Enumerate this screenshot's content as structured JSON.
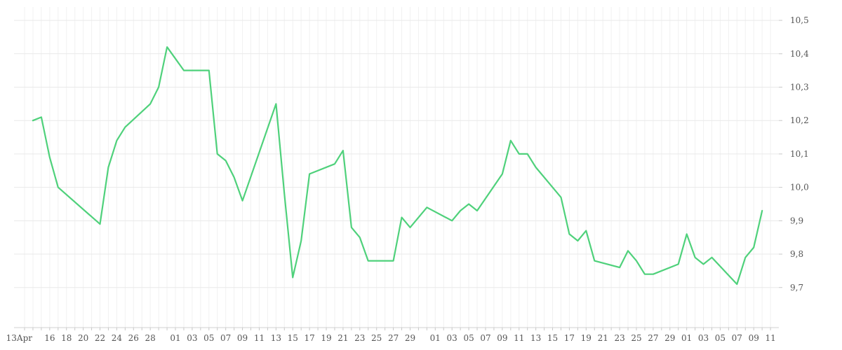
{
  "chart_data": {
    "type": "line",
    "title": "",
    "xlabel": "",
    "ylabel": "",
    "x_tick_labels": [
      "13Apr",
      "16",
      "18",
      "20",
      "22",
      "24",
      "26",
      "28",
      "01",
      "03",
      "05",
      "07",
      "09",
      "11",
      "13",
      "15",
      "17",
      "19",
      "21",
      "23",
      "25",
      "27",
      "29",
      "01",
      "03",
      "05",
      "07",
      "09",
      "11",
      "13",
      "15",
      "17",
      "19",
      "21",
      "23",
      "25",
      "27",
      "29",
      "01",
      "03",
      "05",
      "07",
      "09",
      "11"
    ],
    "y_tick_labels": [
      "9,7",
      "9,8",
      "9,9",
      "10,0",
      "10,1",
      "10,2",
      "10,3",
      "10,4",
      "10,5"
    ],
    "y_ticks": [
      9.7,
      9.8,
      9.9,
      10.0,
      10.1,
      10.2,
      10.3,
      10.4,
      10.5
    ],
    "ylim": [
      9.58,
      10.54
    ],
    "y_axis_position": "right",
    "grid": true,
    "legend": "none",
    "colors": {
      "line": "#4fd17b",
      "grid": "#eeeeee",
      "tick_text": "#555555"
    },
    "series": [
      {
        "x": [
          "2024-04-14",
          "2024-04-15",
          "2024-04-16",
          "2024-04-17",
          "2024-04-22",
          "2024-04-23",
          "2024-04-24",
          "2024-04-25",
          "2024-04-28",
          "2024-04-29",
          "2024-04-30",
          "2024-05-02",
          "2024-05-05",
          "2024-05-06",
          "2024-05-07",
          "2024-05-08",
          "2024-05-09",
          "2024-05-13",
          "2024-05-14",
          "2024-05-15",
          "2024-05-16",
          "2024-05-17",
          "2024-05-20",
          "2024-05-21",
          "2024-05-22",
          "2024-05-23",
          "2024-05-24",
          "2024-05-27",
          "2024-05-28",
          "2024-05-29",
          "2024-05-31",
          "2024-06-03",
          "2024-06-04",
          "2024-06-05",
          "2024-06-06",
          "2024-06-09",
          "2024-06-10",
          "2024-06-11",
          "2024-06-12",
          "2024-06-13",
          "2024-06-16",
          "2024-06-17",
          "2024-06-18",
          "2024-06-19",
          "2024-06-20",
          "2024-06-23",
          "2024-06-24",
          "2024-06-25",
          "2024-06-26",
          "2024-06-27",
          "2024-06-30",
          "2024-07-01",
          "2024-07-02",
          "2024-07-03",
          "2024-07-04",
          "2024-07-07",
          "2024-07-08",
          "2024-07-09",
          "2024-07-10"
        ],
        "values": [
          10.2,
          10.21,
          10.09,
          10.0,
          9.89,
          10.06,
          10.14,
          10.18,
          10.25,
          10.3,
          10.42,
          10.35,
          10.35,
          10.1,
          10.08,
          10.03,
          9.96,
          10.25,
          9.98,
          9.73,
          9.84,
          10.04,
          10.07,
          10.11,
          9.88,
          9.85,
          9.78,
          9.78,
          9.91,
          9.88,
          9.94,
          9.9,
          9.93,
          9.95,
          9.93,
          10.04,
          10.14,
          10.1,
          10.1,
          10.06,
          9.97,
          9.86,
          9.84,
          9.87,
          9.78,
          9.76,
          9.81,
          9.78,
          9.74,
          9.74,
          9.77,
          9.86,
          9.79,
          9.77,
          9.79,
          9.71,
          9.79,
          9.82,
          9.93
        ]
      }
    ]
  }
}
